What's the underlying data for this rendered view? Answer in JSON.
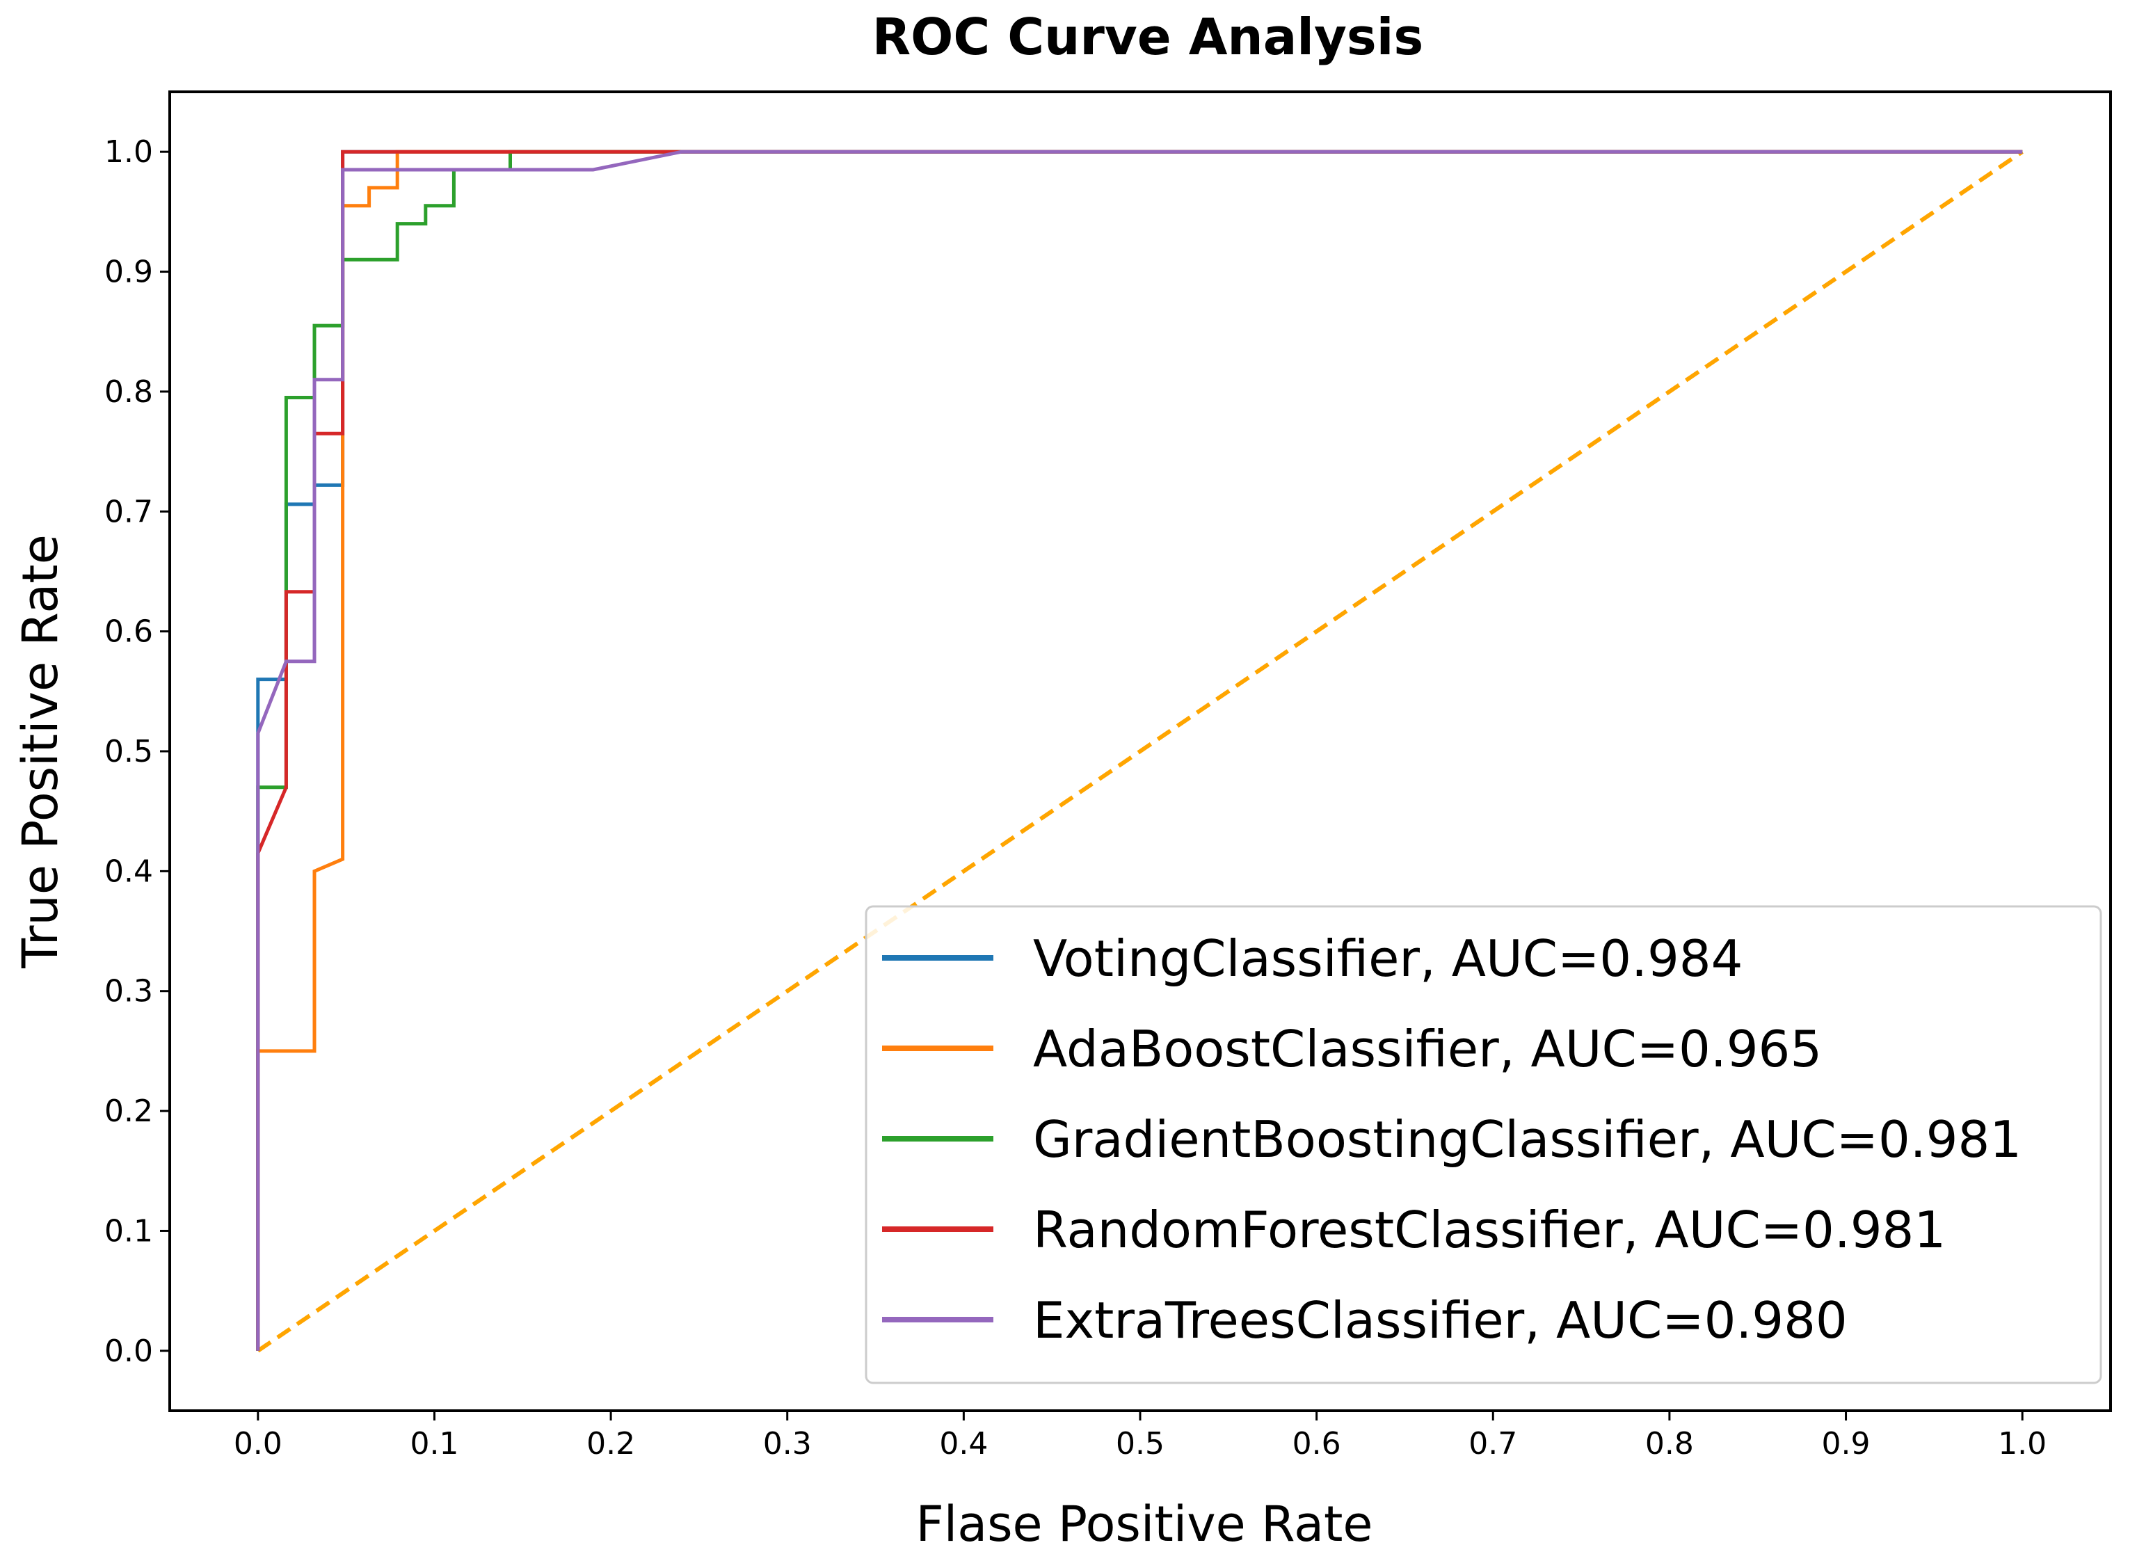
{
  "chart_data": {
    "type": "line",
    "title": "ROC Curve Analysis",
    "xlabel": "Flase Positive Rate",
    "ylabel": "True Positive Rate",
    "xlim": [
      -0.05,
      1.05
    ],
    "ylim": [
      -0.05,
      1.05
    ],
    "xticks": [
      "0.0",
      "0.1",
      "0.2",
      "0.3",
      "0.4",
      "0.5",
      "0.6",
      "0.7",
      "0.8",
      "0.9",
      "1.0"
    ],
    "yticks": [
      "0.0",
      "0.1",
      "0.2",
      "0.3",
      "0.4",
      "0.5",
      "0.6",
      "0.7",
      "0.8",
      "0.9",
      "1.0"
    ],
    "grid": false,
    "legend_position": "lower right",
    "series": [
      {
        "name": "VotingClassifier, AUC=0.984",
        "color": "#1f77b4",
        "x": [
          0,
          0,
          0.016,
          0.016,
          0.032,
          0.032,
          0.048,
          0.048,
          1.0
        ],
        "y": [
          0,
          0.56,
          0.56,
          0.706,
          0.706,
          0.722,
          0.722,
          1.0,
          1.0
        ]
      },
      {
        "name": "AdaBoostClassifier, AUC=0.965",
        "color": "#ff7f0e",
        "x": [
          0,
          0,
          0.032,
          0.032,
          0.048,
          0.048,
          0.063,
          0.063,
          0.079,
          0.079,
          1.0
        ],
        "y": [
          0,
          0.25,
          0.25,
          0.4,
          0.41,
          0.955,
          0.955,
          0.97,
          0.97,
          1.0,
          1.0
        ]
      },
      {
        "name": "GradientBoostingClassifier, AUC=0.981",
        "color": "#2ca02c",
        "x": [
          0,
          0,
          0.016,
          0.016,
          0.032,
          0.032,
          0.048,
          0.048,
          0.079,
          0.079,
          0.095,
          0.095,
          0.111,
          0.111,
          0.143,
          0.143,
          1.0
        ],
        "y": [
          0,
          0.47,
          0.47,
          0.795,
          0.795,
          0.855,
          0.855,
          0.91,
          0.91,
          0.94,
          0.94,
          0.955,
          0.955,
          0.985,
          0.985,
          1.0,
          1.0
        ]
      },
      {
        "name": "RandomForestClassifier, AUC=0.981",
        "color": "#d62728",
        "x": [
          0,
          0,
          0.016,
          0.016,
          0.032,
          0.032,
          0.048,
          0.048,
          1.0
        ],
        "y": [
          0,
          0.415,
          0.47,
          0.633,
          0.633,
          0.765,
          0.765,
          1.0,
          1.0
        ]
      },
      {
        "name": "ExtraTreesClassifier, AUC=0.980",
        "color": "#9467bd",
        "x": [
          0,
          0,
          0.016,
          0.032,
          0.032,
          0.048,
          0.048,
          0.19,
          0.24,
          1.0
        ],
        "y": [
          0,
          0.515,
          0.575,
          0.575,
          0.81,
          0.81,
          0.985,
          0.985,
          1.0,
          1.0
        ]
      },
      {
        "name": "",
        "color": "#ffa500",
        "style": "dashed",
        "x": [
          0,
          1
        ],
        "y": [
          0,
          1
        ]
      }
    ]
  }
}
